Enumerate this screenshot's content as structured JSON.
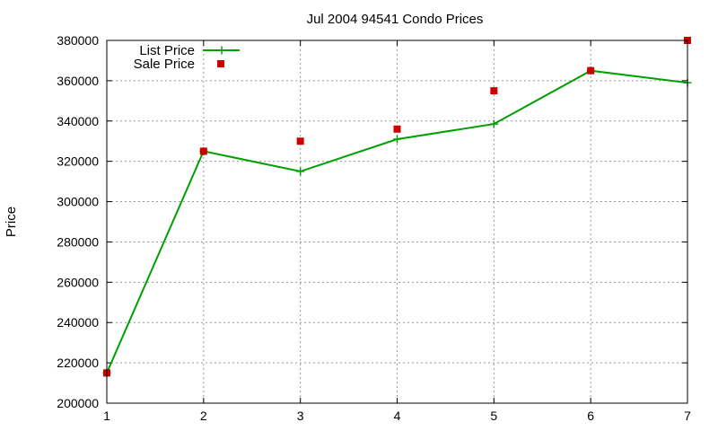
{
  "chart_data": {
    "type": "line",
    "title": "Jul 2004 94541 Condo Prices",
    "xlabel": "",
    "ylabel": "Price",
    "xlim": [
      1,
      7
    ],
    "ylim": [
      200000,
      380000
    ],
    "x_ticks": [
      "1",
      "2",
      "3",
      "4",
      "5",
      "6",
      "7"
    ],
    "y_ticks": [
      "200000",
      "220000",
      "240000",
      "260000",
      "280000",
      "300000",
      "320000",
      "340000",
      "360000",
      "380000"
    ],
    "grid": true,
    "legend_position": "top-left",
    "series": [
      {
        "name": "List Price",
        "style": "line+cross",
        "color": "#00a000",
        "x": [
          1,
          2,
          3,
          4,
          5,
          6,
          7
        ],
        "y": [
          215000,
          325000,
          315000,
          331000,
          338500,
          365000,
          359000
        ]
      },
      {
        "name": "Sale Price",
        "style": "square",
        "color": "#cc0000",
        "x": [
          1,
          2,
          3,
          4,
          5,
          6,
          7
        ],
        "y": [
          215000,
          325000,
          330000,
          336000,
          355000,
          365000,
          380000
        ]
      }
    ]
  }
}
